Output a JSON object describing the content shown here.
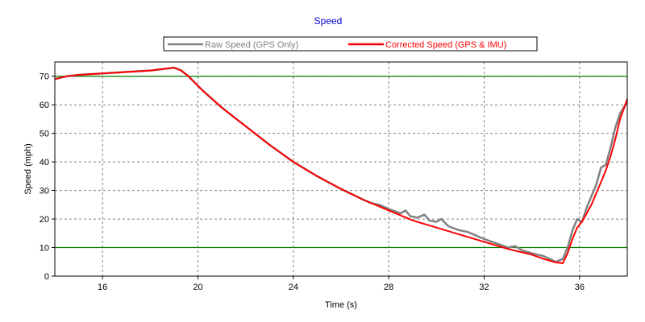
{
  "chart_data": {
    "type": "line",
    "title": "Speed",
    "xlabel": "Time (s)",
    "ylabel": "Speed (mph)",
    "xlim": [
      14,
      38
    ],
    "ylim": [
      0,
      75
    ],
    "x_ticks": [
      16,
      20,
      24,
      28,
      32,
      36
    ],
    "y_ticks": [
      0,
      10,
      20,
      30,
      40,
      50,
      60,
      70
    ],
    "grid": true,
    "legend_position": "top-center",
    "reference_lines": [
      {
        "y": 70,
        "color": "#008000"
      },
      {
        "y": 10,
        "color": "#008000"
      }
    ],
    "series": [
      {
        "name": "Raw Speed (GPS Only)",
        "color": "#808080",
        "x": [
          14,
          14.5,
          15,
          16,
          17,
          18,
          18.5,
          19,
          19.3,
          19.6,
          19.9,
          20.2,
          21,
          22,
          23,
          24,
          25,
          26,
          27,
          27.3,
          27.6,
          28,
          28.5,
          28.7,
          28.9,
          29.2,
          29.5,
          29.7,
          30,
          30.2,
          30.5,
          30.8,
          31,
          31.3,
          32,
          32.5,
          33,
          33.3,
          33.6,
          34,
          34.5,
          35,
          35.3,
          35.5,
          35.7,
          35.9,
          36.1,
          36.3,
          36.5,
          36.7,
          36.9,
          37.1,
          37.3,
          37.5,
          37.7,
          38
        ],
        "y": [
          69,
          70,
          70.5,
          71,
          71.5,
          72,
          72.5,
          73,
          72,
          70,
          67.5,
          65,
          59,
          52.5,
          46,
          40,
          35,
          30.5,
          26.5,
          25.5,
          25,
          23.5,
          22,
          23,
          21,
          20.5,
          21.5,
          19.5,
          19,
          20,
          17.5,
          16.5,
          16,
          15.5,
          13,
          11.5,
          10,
          10.5,
          9,
          8,
          7,
          5,
          6,
          10,
          16,
          20,
          19,
          24,
          28,
          32,
          38,
          39,
          45,
          52,
          57,
          61
        ]
      },
      {
        "name": "Corrected Speed (GPS & IMU)",
        "color": "#ff0000",
        "x": [
          14,
          14.5,
          15,
          16,
          17,
          18,
          18.5,
          19,
          19.3,
          19.6,
          19.9,
          20.2,
          21,
          22,
          23,
          24,
          25,
          26,
          27,
          28,
          29,
          30,
          31,
          32,
          33,
          34,
          34.5,
          35,
          35.3,
          35.5,
          35.7,
          35.9,
          36.1,
          36.3,
          36.5,
          36.7,
          36.9,
          37.1,
          37.3,
          37.5,
          37.7,
          38
        ],
        "y": [
          69,
          70,
          70.5,
          71,
          71.5,
          72,
          72.5,
          73,
          72,
          70,
          67.5,
          65,
          59,
          52.5,
          46,
          40,
          35,
          30.5,
          26.5,
          23,
          19.5,
          17,
          14.5,
          12,
          9.5,
          7.5,
          6,
          4.8,
          4.5,
          8,
          13,
          17,
          19,
          22,
          25,
          29,
          33,
          37,
          42,
          48,
          55,
          62
        ]
      }
    ]
  }
}
